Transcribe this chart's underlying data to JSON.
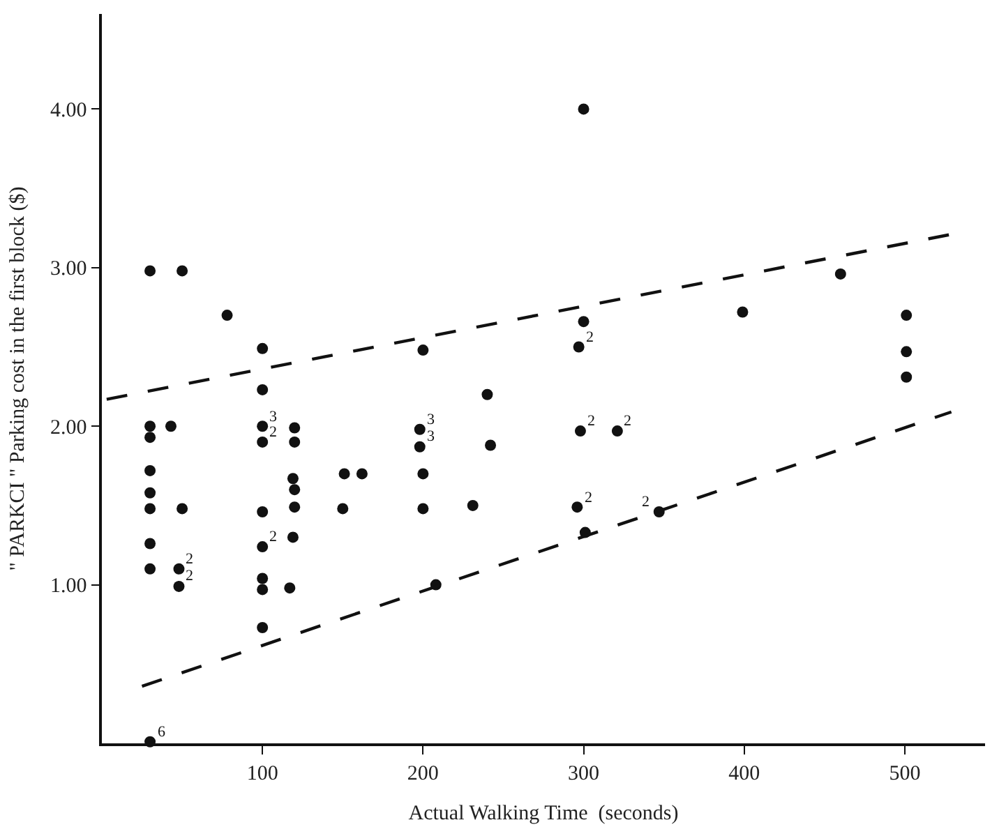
{
  "chart_data": {
    "type": "scatter",
    "xlabel": "Actual Walking Time  (seconds)",
    "ylabel": "\" PARKCI \" Parking cost in the first block ($)",
    "xlim": [
      0,
      550
    ],
    "ylim": [
      0,
      4.6
    ],
    "xticks": [
      100,
      200,
      300,
      400,
      500
    ],
    "yticks": [
      {
        "value": 1,
        "label": "1.00"
      },
      {
        "value": 2,
        "label": "2.00"
      },
      {
        "value": 3,
        "label": "3.00"
      },
      {
        "value": 4,
        "label": "4.00"
      }
    ],
    "marker": "circle",
    "series": [
      {
        "color": "#111111",
        "x": [
          30,
          50,
          78,
          100,
          100,
          30,
          30,
          43,
          100,
          100,
          120,
          120,
          30,
          30,
          30,
          50,
          30,
          30,
          48,
          48,
          100,
          100,
          100,
          100,
          100,
          119,
          120,
          120,
          119,
          117,
          151,
          150,
          30,
          300,
          300,
          297,
          200,
          240,
          198,
          198,
          242,
          298,
          321,
          162,
          200,
          200,
          231,
          296,
          347,
          301,
          208,
          460,
          399,
          501,
          501,
          501
        ],
        "values": [
          2.98,
          2.98,
          2.7,
          2.49,
          2.23,
          2.0,
          1.93,
          2.0,
          2.0,
          1.9,
          1.99,
          1.9,
          1.72,
          1.58,
          1.48,
          1.48,
          1.26,
          1.1,
          1.1,
          0.99,
          1.46,
          1.24,
          1.04,
          0.97,
          0.73,
          1.67,
          1.6,
          1.49,
          1.3,
          0.98,
          1.7,
          1.48,
          0.01,
          4.0,
          2.66,
          2.5,
          2.48,
          2.2,
          1.98,
          1.87,
          1.88,
          1.97,
          1.97,
          1.7,
          1.7,
          1.48,
          1.5,
          1.49,
          1.46,
          1.33,
          1.0,
          2.96,
          2.72,
          2.7,
          2.47,
          2.31
        ]
      },
      {
        "type": "line",
        "line_style": "dashed",
        "marker": "none",
        "color": "#111111",
        "x": [
          3,
          529
        ],
        "values": [
          2.17,
          3.21
        ]
      },
      {
        "type": "line",
        "line_style": "dashed",
        "marker": "none",
        "color": "#111111",
        "x": [
          25,
          529
        ],
        "values": [
          0.36,
          2.09
        ]
      }
    ],
    "annotations": [
      {
        "text": "3",
        "x": 100,
        "y": 2.0
      },
      {
        "text": "2",
        "x": 100,
        "y": 1.9
      },
      {
        "text": "2",
        "x": 48,
        "y": 1.1
      },
      {
        "text": "2",
        "x": 48,
        "y": 0.99
      },
      {
        "text": "2",
        "x": 100,
        "y": 1.24
      },
      {
        "text": "6",
        "x": 30,
        "y": 0.01
      },
      {
        "text": "2",
        "x": 297,
        "y": 2.5
      },
      {
        "text": "3",
        "x": 198,
        "y": 1.98
      },
      {
        "text": "3",
        "x": 198,
        "y": 1.87
      },
      {
        "text": "2",
        "x": 298,
        "y": 1.97
      },
      {
        "text": "2",
        "x": 321,
        "y": 1.97
      },
      {
        "text": "2",
        "x": 296,
        "y": 1.49
      },
      {
        "text": "2",
        "x": 347,
        "y": 1.46
      }
    ]
  }
}
